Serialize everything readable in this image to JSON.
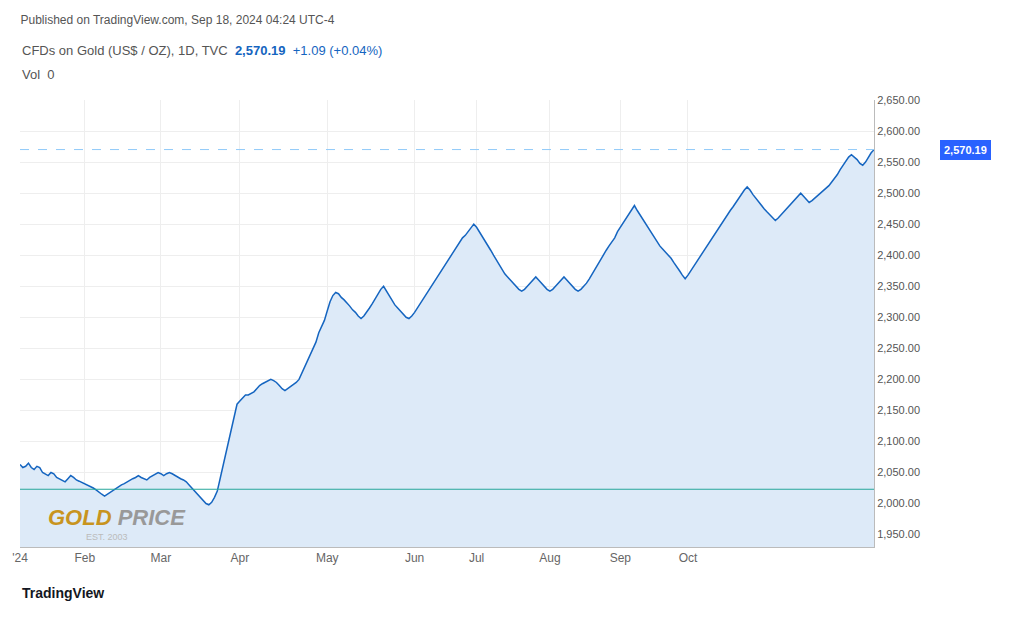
{
  "chart_data": {
    "type": "area",
    "title": "Published on TradingView.com, Sep 18, 2024 04:24 UTC-4",
    "subtitle": "CFDs on Gold (US$ / OZ), 1D, TVC",
    "annotations": [
      {
        "text": "2,570.19",
        "color": "#1565C0"
      },
      {
        "text": "+1.09 (+0.04%)",
        "color": "#1565C0"
      },
      {
        "text": "Vol  0",
        "color": "#555555"
      },
      {
        "text": "GOLD",
        "color": "#C8941F"
      },
      {
        "text": "PRICE",
        "color": "#999999"
      },
      {
        "text": "EST. 2003",
        "color": "#bbbbbb"
      },
      {
        "text": "TradingView",
        "color": "#131722"
      }
    ],
    "color": "#1565C0",
    "fill_color": "#DDEAF8",
    "categories": [
      "'24",
      null,
      null,
      null,
      null,
      null,
      null,
      null,
      null,
      null,
      null,
      null,
      null,
      null,
      null,
      null,
      null,
      null,
      null,
      null,
      null,
      null,
      null,
      "Feb",
      null,
      null,
      null,
      null,
      null,
      null,
      null,
      null,
      null,
      null,
      null,
      null,
      null,
      null,
      null,
      null,
      null,
      null,
      null,
      null,
      null,
      null,
      null,
      null,
      null,
      null,
      "Mar",
      null,
      null,
      null,
      null,
      null,
      null,
      null,
      null,
      null,
      null,
      null,
      null,
      null,
      null,
      null,
      null,
      null,
      null,
      null,
      null,
      null,
      null,
      null,
      null,
      null,
      null,
      null,
      "Apr",
      null,
      null,
      null,
      null,
      null,
      null,
      null,
      null,
      null,
      null,
      null,
      null,
      null,
      null,
      null,
      null,
      null,
      null,
      null,
      null,
      null,
      null,
      null,
      null,
      null,
      null,
      null,
      null,
      null,
      null,
      "May",
      null,
      null,
      null,
      null,
      null,
      null,
      null,
      null,
      null,
      null,
      null,
      null,
      null,
      null,
      null,
      null,
      null,
      null,
      null,
      null,
      null,
      null,
      null,
      null,
      null,
      null,
      null,
      null,
      null,
      null,
      "Jun",
      null,
      null,
      null,
      null,
      null,
      null,
      null,
      null,
      null,
      null,
      null,
      null,
      null,
      null,
      null,
      null,
      null,
      null,
      null,
      null,
      null,
      "Jul",
      null,
      null,
      null,
      null,
      null,
      null,
      null,
      null,
      null,
      null,
      null,
      null,
      null,
      null,
      null,
      null,
      null,
      null,
      null,
      null,
      null,
      null,
      null,
      null,
      null,
      "Aug",
      null,
      null,
      null,
      null,
      null,
      null,
      null,
      null,
      null,
      null,
      null,
      null,
      null,
      null,
      null,
      null,
      null,
      null,
      null,
      null,
      null,
      null,
      null,
      null,
      "Sep",
      null,
      null,
      null,
      null,
      null,
      null,
      null,
      null,
      null,
      null,
      null,
      null,
      null,
      null,
      null,
      null,
      null,
      null,
      null,
      null,
      null,
      null,
      null,
      "Oct",
      null,
      null,
      null,
      null,
      null,
      null,
      null,
      null,
      null,
      null,
      null,
      null,
      null,
      null,
      null,
      null,
      null,
      null,
      null,
      null,
      null,
      null,
      null,
      null,
      null,
      null,
      null,
      null,
      null,
      null,
      null,
      null,
      null,
      null,
      null,
      null,
      null,
      null,
      null,
      null,
      null,
      null,
      null,
      null,
      null,
      null,
      null,
      null,
      null,
      null,
      null,
      null,
      null,
      null,
      null,
      null,
      null,
      null,
      null,
      null,
      null,
      null,
      null,
      null,
      null,
      null
    ],
    "values": [
      2063,
      2058,
      2060,
      2065,
      2058,
      2055,
      2060,
      2058,
      2050,
      2048,
      2045,
      2050,
      2048,
      2042,
      2040,
      2038,
      2035,
      2040,
      2045,
      2042,
      2038,
      2036,
      2034,
      2032,
      2030,
      2028,
      2025,
      2022,
      2018,
      2015,
      2012,
      2015,
      2018,
      2022,
      2025,
      2028,
      2030,
      2032,
      2035,
      2038,
      2040,
      2042,
      2045,
      2042,
      2040,
      2038,
      2042,
      2045,
      2048,
      2050,
      2048,
      2045,
      2048,
      2050,
      2048,
      2045,
      2042,
      2040,
      2038,
      2035,
      2030,
      2025,
      2020,
      2015,
      2010,
      2005,
      2000,
      1998,
      2002,
      2010,
      2020,
      2040,
      2060,
      2080,
      2100,
      2120,
      2140,
      2160,
      2165,
      2170,
      2175,
      2175,
      2178,
      2180,
      2185,
      2190,
      2193,
      2195,
      2198,
      2200,
      2198,
      2195,
      2190,
      2185,
      2182,
      2185,
      2188,
      2192,
      2195,
      2200,
      2210,
      2220,
      2230,
      2240,
      2250,
      2260,
      2275,
      2285,
      2295,
      2310,
      2325,
      2335,
      2340,
      2338,
      2332,
      2328,
      2322,
      2318,
      2312,
      2308,
      2302,
      2298,
      2302,
      2308,
      2315,
      2322,
      2330,
      2338,
      2345,
      2350,
      2342,
      2335,
      2328,
      2320,
      2315,
      2310,
      2305,
      2300,
      2298,
      2302,
      2308,
      2315,
      2322,
      2328,
      2335,
      2342,
      2350,
      2358,
      2365,
      2372,
      2378,
      2385,
      2392,
      2398,
      2405,
      2412,
      2420,
      2428,
      2432,
      2438,
      2442,
      2450,
      2445,
      2438,
      2430,
      2422,
      2415,
      2408,
      2400,
      2392,
      2385,
      2378,
      2370,
      2365,
      2360,
      2355,
      2350,
      2345,
      2342,
      2345,
      2350,
      2355,
      2360,
      2365,
      2360,
      2355,
      2350,
      2345,
      2342,
      2345,
      2350,
      2355,
      2360,
      2365,
      2360,
      2355,
      2350,
      2345,
      2342,
      2345,
      2350,
      2355,
      2362,
      2370,
      2378,
      2385,
      2392,
      2400,
      2408,
      2415,
      2422,
      2428,
      2438,
      2445,
      2452,
      2460,
      2468,
      2475,
      2480,
      2472,
      2465,
      2458,
      2450,
      2442,
      2435,
      2428,
      2422,
      2415,
      2410,
      2405,
      2400,
      2395,
      2388,
      2382,
      2375,
      2368,
      2362,
      2368,
      2375,
      2382,
      2388,
      2395,
      2402,
      2410,
      2418,
      2425,
      2432,
      2438,
      2445,
      2452,
      2458,
      2465,
      2472,
      2478,
      2485,
      2492,
      2498,
      2505,
      2510,
      2505,
      2498,
      2492,
      2486,
      2480,
      2475,
      2470,
      2465,
      2460,
      2456,
      2460,
      2465,
      2470,
      2475,
      2480,
      2485,
      2490,
      2495,
      2500,
      2495,
      2490,
      2485,
      2488,
      2492,
      2496,
      2500,
      2504,
      2508,
      2512,
      2518,
      2524,
      2530,
      2538,
      2545,
      2552,
      2558,
      2562,
      2558,
      2554,
      2548,
      2545,
      2550,
      2558,
      2565,
      2570
    ],
    "reference_lines": [
      {
        "y": 2023,
        "color": "#26a69a",
        "line_style": "solid"
      },
      {
        "y": 2570.19,
        "color": "#90CAF9",
        "line_style": "dashed",
        "label": "2,570.19",
        "label_color": "#2962ff",
        "label_text_color": "#ffffff"
      }
    ],
    "ylim": [
      1930,
      2650
    ],
    "yticks": [
      {
        "value": 1950,
        "label": "1,950.00"
      },
      {
        "value": 2000,
        "label": "2,000.00"
      },
      {
        "value": 2050,
        "label": "2,050.00"
      },
      {
        "value": 2100,
        "label": "2,100.00"
      },
      {
        "value": 2150,
        "label": "2,150.00"
      },
      {
        "value": 2200,
        "label": "2,200.00"
      },
      {
        "value": 2250,
        "label": "2,250.00"
      },
      {
        "value": 2300,
        "label": "2,300.00"
      },
      {
        "value": 2350,
        "label": "2,350.00"
      },
      {
        "value": 2400,
        "label": "2,400.00"
      },
      {
        "value": 2450,
        "label": "2,450.00"
      },
      {
        "value": 2500,
        "label": "2,500.00"
      },
      {
        "value": 2550,
        "label": "2,550.00"
      },
      {
        "value": 2600,
        "label": "2,600.00"
      },
      {
        "value": 2650,
        "label": "2,650.00"
      }
    ],
    "grid": true
  }
}
